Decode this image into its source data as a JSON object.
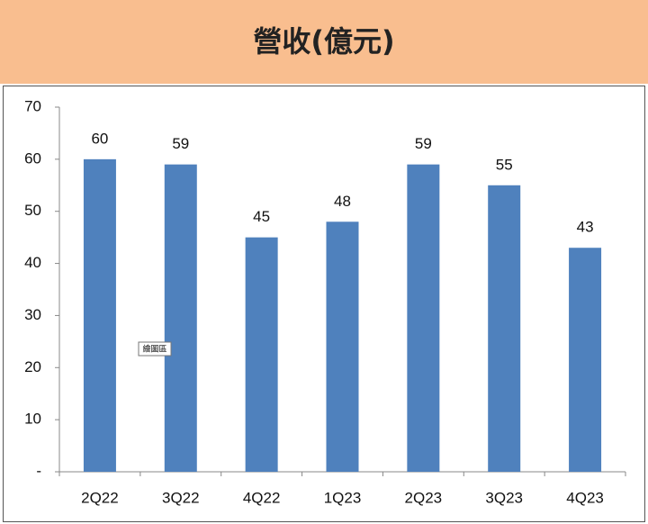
{
  "chart_data": {
    "type": "bar",
    "title": "營收(億元)",
    "categories": [
      "2Q22",
      "3Q22",
      "4Q22",
      "1Q23",
      "2Q23",
      "3Q23",
      "4Q23"
    ],
    "values": [
      60,
      59,
      45,
      48,
      59,
      55,
      43
    ],
    "color": "#4f81bd",
    "ylim": [
      0,
      70
    ],
    "yticks": [
      {
        "value": 0,
        "label": "-"
      },
      10,
      20,
      30,
      40,
      50,
      60,
      70
    ],
    "grid": false,
    "tooltip": "繪圖區"
  }
}
